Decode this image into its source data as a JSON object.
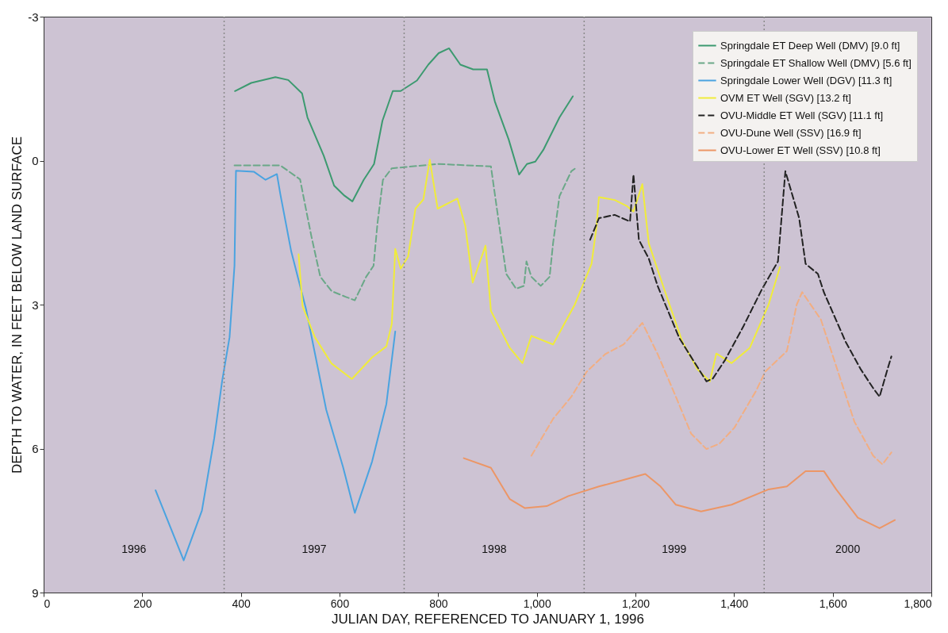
{
  "chart_data": {
    "type": "line",
    "xlabel": "JULIAN DAY, REFERENCED TO JANUARY 1, 1996",
    "ylabel": "DEPTH TO WATER, IN FEET BELOW LAND SURFACE",
    "xlim": [
      0,
      1800
    ],
    "xticks": [
      0,
      200,
      400,
      600,
      800,
      {
        "value": 1000,
        "label": "1,000"
      },
      {
        "value": 1200,
        "label": "1,200"
      },
      {
        "value": 1400,
        "label": "1,400"
      },
      {
        "value": 1600,
        "label": "1,600"
      },
      {
        "value": 1800,
        "label": "1,800"
      }
    ],
    "ylim": [
      9,
      -3
    ],
    "yticks": [
      -3,
      0,
      3,
      6,
      9
    ],
    "grid": false,
    "legend": "top right",
    "marker": "none",
    "ref_lines": [
      {
        "axis": "x",
        "value": 366,
        "line_style": "dotted",
        "color": "#8a8a8a"
      },
      {
        "axis": "x",
        "value": 731,
        "line_style": "dotted",
        "color": "#8a8a8a"
      },
      {
        "axis": "x",
        "value": 1096,
        "line_style": "dotted",
        "color": "#8a8a8a"
      },
      {
        "axis": "x",
        "value": 1461,
        "line_style": "dotted",
        "color": "#8a8a8a"
      }
    ],
    "annotations": [
      "1996",
      "1997",
      "1998",
      "1999",
      "2000"
    ],
    "series": [
      {
        "name": "Springdale ET Deep Well (DMV) [9.0 ft]",
        "color": "#3c9a70",
        "line_style": "solid",
        "x": [
          388,
          421,
          470,
          496,
          524,
          535,
          568,
          589,
          610,
          626,
          649,
          670,
          687,
          708,
          724,
          757,
          780,
          801,
          822,
          845,
          871,
          899,
          915,
          943,
          964,
          980,
          997,
          1013,
          1046,
          1073
        ],
        "values": [
          -1.45,
          -1.62,
          -1.74,
          -1.68,
          -1.4,
          -0.9,
          -0.1,
          0.52,
          0.73,
          0.85,
          0.4,
          0.07,
          -0.83,
          -1.45,
          -1.45,
          -1.67,
          -2.0,
          -2.24,
          -2.34,
          -2.0,
          -1.9,
          -1.9,
          -1.23,
          -0.44,
          0.29,
          0.07,
          0.02,
          -0.22,
          -0.9,
          -1.34
        ]
      },
      {
        "name": "Springdale ET Shallow Well (DMV) [5.6 ft]",
        "color": "#6aa888",
        "line_style": "dashed",
        "x": [
          387,
          480,
          520,
          534,
          543,
          561,
          584,
          613,
          631,
          654,
          669,
          677,
          688,
          706,
          800,
          907,
          920,
          938,
          958,
          974,
          979,
          989,
          1008,
          1026,
          1033,
          1046,
          1070,
          1077
        ],
        "values": [
          0.1,
          0.1,
          0.39,
          1.12,
          1.58,
          2.42,
          2.72,
          2.84,
          2.91,
          2.42,
          2.19,
          1.3,
          0.4,
          0.16,
          0.07,
          0.12,
          1.07,
          2.36,
          2.67,
          2.61,
          2.1,
          2.42,
          2.61,
          2.42,
          1.72,
          0.74,
          0.22,
          0.17
        ]
      },
      {
        "name": "Springdale Lower Well (DGV) [11.3 ft]",
        "color": "#4aa3e0",
        "line_style": "solid",
        "x": [
          227,
          284,
          321,
          346,
          362,
          377,
          387,
          390,
          426,
          450,
          473,
          480,
          502,
          532,
          573,
          607,
          631,
          666,
          695,
          713
        ],
        "values": [
          6.87,
          8.33,
          7.29,
          5.78,
          4.59,
          3.68,
          2.19,
          0.21,
          0.23,
          0.4,
          0.28,
          0.7,
          1.89,
          3.09,
          5.19,
          6.38,
          7.34,
          6.27,
          5.07,
          3.56
        ]
      },
      {
        "name": "OVM ET Well (SGV) [13.2 ft]",
        "color": "#f0ec3a",
        "line_style": "solid",
        "x": [
          517,
          525,
          550,
          584,
          625,
          666,
          695,
          706,
          713,
          724,
          739,
          754,
          770,
          783,
          799,
          839,
          855,
          870,
          896,
          907,
          945,
          971,
          989,
          1033,
          1077,
          1111,
          1121,
          1126,
          1158,
          1183,
          1196,
          1214,
          1227,
          1258,
          1295,
          1326,
          1351,
          1364,
          1395,
          1432,
          1470,
          1493
        ],
        "values": [
          1.95,
          3.03,
          3.68,
          4.23,
          4.55,
          4.1,
          3.87,
          3.4,
          1.84,
          2.25,
          2.0,
          1.0,
          0.81,
          -0.02,
          1.0,
          0.79,
          1.36,
          2.54,
          1.77,
          3.13,
          3.9,
          4.22,
          3.65,
          3.83,
          3.0,
          2.15,
          1.38,
          0.76,
          0.82,
          0.95,
          1.06,
          0.49,
          1.72,
          2.67,
          3.77,
          4.35,
          4.6,
          4.02,
          4.22,
          3.9,
          3.0,
          2.22
        ]
      },
      {
        "name": "OVU-Middle ET Well (SGV) [11.1 ft]",
        "color": "#222222",
        "line_style": "dashed",
        "x": [
          1108,
          1126,
          1158,
          1189,
          1196,
          1207,
          1227,
          1245,
          1289,
          1344,
          1357,
          1382,
          1419,
          1457,
          1489,
          1504,
          1532,
          1545,
          1570,
          1582,
          1626,
          1657,
          1682,
          1695,
          1711,
          1719
        ],
        "values": [
          1.65,
          1.2,
          1.13,
          1.27,
          0.29,
          1.65,
          2.04,
          2.61,
          3.7,
          4.6,
          4.54,
          4.15,
          3.45,
          2.67,
          2.1,
          0.22,
          1.2,
          2.15,
          2.36,
          2.74,
          3.77,
          4.35,
          4.74,
          4.92,
          4.35,
          4.08
        ]
      },
      {
        "name": "OVU-Dune Well (SSV) [16.9 ft]",
        "color": "#f2ae82",
        "line_style": "dashed",
        "x": [
          989,
          1033,
          1070,
          1101,
          1139,
          1176,
          1214,
          1245,
          1282,
          1313,
          1344,
          1370,
          1401,
          1445,
          1463,
          1507,
          1527,
          1538,
          1576,
          1607,
          1644,
          1682,
          1701,
          1719
        ],
        "values": [
          6.15,
          5.38,
          4.92,
          4.4,
          4.03,
          3.83,
          3.38,
          4.03,
          4.92,
          5.69,
          6.01,
          5.9,
          5.56,
          4.79,
          4.4,
          3.97,
          3.0,
          2.74,
          3.31,
          4.28,
          5.44,
          6.15,
          6.33,
          6.08
        ]
      },
      {
        "name": "OVU-Lower ET Well (SSV) [10.8 ft]",
        "color": "#ec9666",
        "line_style": "solid",
        "x": [
          852,
          907,
          945,
          976,
          1020,
          1064,
          1126,
          1170,
          1220,
          1251,
          1282,
          1333,
          1395,
          1470,
          1507,
          1545,
          1582,
          1607,
          1651,
          1695,
          1726
        ],
        "values": [
          6.2,
          6.4,
          7.05,
          7.24,
          7.2,
          6.99,
          6.79,
          6.67,
          6.53,
          6.79,
          7.17,
          7.31,
          7.17,
          6.85,
          6.79,
          6.47,
          6.47,
          6.85,
          7.44,
          7.66,
          7.49
        ]
      }
    ]
  }
}
